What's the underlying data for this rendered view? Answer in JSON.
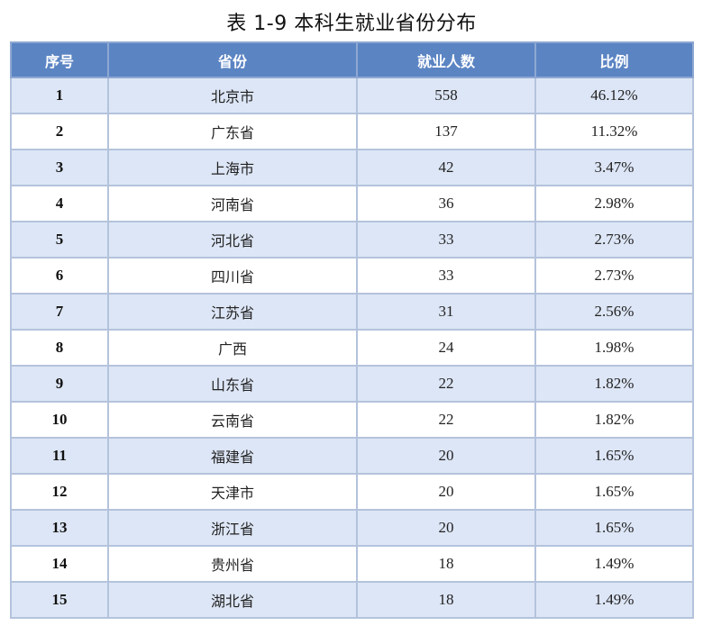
{
  "title": "表 1-9 本科生就业省份分布",
  "table": {
    "headers": [
      "序号",
      "省份",
      "就业人数",
      "比例"
    ],
    "rows": [
      [
        "1",
        "北京市",
        "558",
        "46.12%"
      ],
      [
        "2",
        "广东省",
        "137",
        "11.32%"
      ],
      [
        "3",
        "上海市",
        "42",
        "3.47%"
      ],
      [
        "4",
        "河南省",
        "36",
        "2.98%"
      ],
      [
        "5",
        "河北省",
        "33",
        "2.73%"
      ],
      [
        "6",
        "四川省",
        "33",
        "2.73%"
      ],
      [
        "7",
        "江苏省",
        "31",
        "2.56%"
      ],
      [
        "8",
        "广西",
        "24",
        "1.98%"
      ],
      [
        "9",
        "山东省",
        "22",
        "1.82%"
      ],
      [
        "10",
        "云南省",
        "22",
        "1.82%"
      ],
      [
        "11",
        "福建省",
        "20",
        "1.65%"
      ],
      [
        "12",
        "天津市",
        "20",
        "1.65%"
      ],
      [
        "13",
        "浙江省",
        "20",
        "1.65%"
      ],
      [
        "14",
        "贵州省",
        "18",
        "1.49%"
      ],
      [
        "15",
        "湖北省",
        "18",
        "1.49%"
      ]
    ]
  },
  "colors": {
    "header_bg": "#5b84c3",
    "header_text": "#ffffff",
    "stripe_bg": "#dde6f6",
    "border": "#b4c3dc"
  }
}
